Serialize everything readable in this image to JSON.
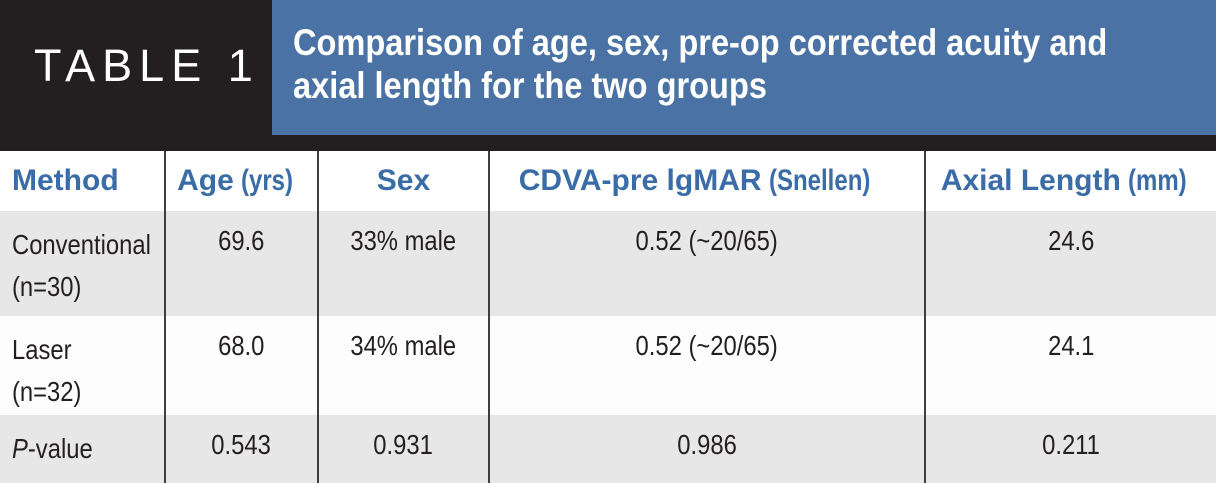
{
  "header": {
    "label": "TABLE 1",
    "title_lines": [
      "Comparison of age, sex, pre-op corrected acuity and",
      "axial length for the two groups"
    ]
  },
  "colors": {
    "band_black": "#231f20",
    "title_blue": "#4a72a4",
    "header_text_blue": "#3a6ca8",
    "row_gray": "#e8e7e7",
    "row_white": "#fdfdfd",
    "text_dark": "#231f20",
    "divider": "#403d3d"
  },
  "table": {
    "columns": [
      {
        "main": "Method",
        "unit": ""
      },
      {
        "main": "Age",
        "unit": "(yrs)"
      },
      {
        "main": "Sex",
        "unit": ""
      },
      {
        "main": "CDVA-pre lgMAR",
        "unit": "(Snellen)"
      },
      {
        "main": "Axial Length",
        "unit": "(mm)"
      }
    ],
    "rows": [
      {
        "method": [
          "Conventional",
          "(n=30)"
        ],
        "age": "69.6",
        "sex": "33% male",
        "cdva": "0.52 (~20/65)",
        "axial": "24.6"
      },
      {
        "method": [
          "Laser",
          "(n=32)"
        ],
        "age": "68.0",
        "sex": "34% male",
        "cdva": "0.52 (~20/65)",
        "axial": "24.1"
      },
      {
        "method_italic": "P",
        "method_rest": "-value",
        "age": "0.543",
        "sex": "0.931",
        "cdva": "0.986",
        "axial": "0.211"
      }
    ]
  }
}
